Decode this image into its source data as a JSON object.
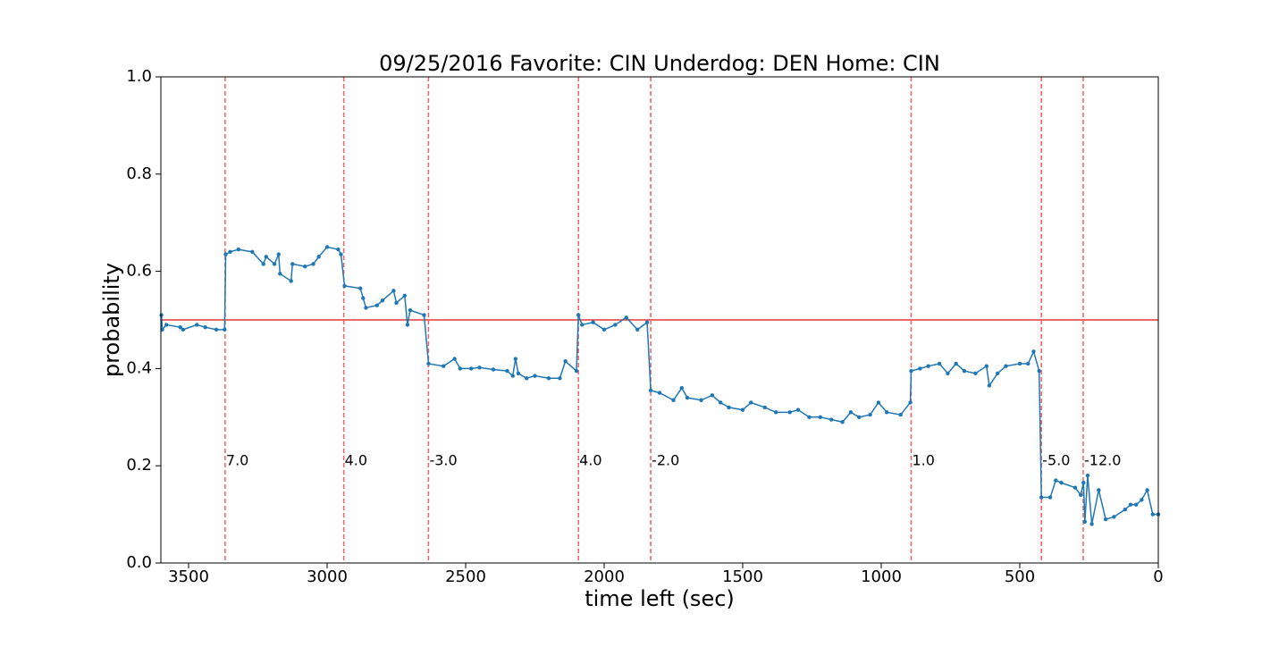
{
  "chart_data": {
    "type": "line",
    "title": "09/25/2016 Favorite: CIN Underdog: DEN Home: CIN",
    "x_label": "time left (sec)",
    "y_label": "probability",
    "xlim": [
      3600,
      0
    ],
    "ylim": [
      0,
      1
    ],
    "xticks": [
      3500,
      3000,
      2500,
      2000,
      1500,
      1000,
      500,
      0
    ],
    "yticks": [
      {
        "value": 0,
        "label": "0.0"
      },
      {
        "value": 0.2,
        "label": "0.2"
      },
      {
        "value": 0.4,
        "label": "0.4"
      },
      {
        "value": 0.6,
        "label": "0.6"
      },
      {
        "value": 0.8,
        "label": "0.8"
      },
      {
        "value": 1,
        "label": "1.0"
      }
    ],
    "grid": false,
    "reference_line": {
      "y": 0.5,
      "color": "#e0393e"
    },
    "event_lines": {
      "color": "#f06060",
      "label_y": 0.21,
      "x": [
        3368,
        2940,
        2634,
        2093,
        1832,
        892,
        422,
        271
      ],
      "labels": [
        "7.0",
        "4.0",
        "-3.0",
        "4.0",
        "-2.0",
        "1.0",
        "-5.0",
        "-12.0"
      ]
    },
    "series": [
      {
        "name": "probability",
        "color": "#1f77b4",
        "x": [
          3598,
          3595,
          3580,
          3530,
          3520,
          3470,
          3440,
          3400,
          3370,
          3366,
          3350,
          3320,
          3270,
          3230,
          3220,
          3190,
          3175,
          3170,
          3130,
          3125,
          3080,
          3050,
          3030,
          3000,
          2960,
          2950,
          2937,
          2880,
          2870,
          2860,
          2820,
          2800,
          2760,
          2750,
          2720,
          2710,
          2700,
          2650,
          2634,
          2580,
          2540,
          2520,
          2480,
          2450,
          2400,
          2350,
          2330,
          2320,
          2310,
          2280,
          2250,
          2200,
          2160,
          2140,
          2100,
          2093,
          2080,
          2040,
          2000,
          1960,
          1920,
          1880,
          1845,
          1832,
          1800,
          1750,
          1720,
          1700,
          1650,
          1610,
          1580,
          1550,
          1500,
          1470,
          1420,
          1380,
          1330,
          1300,
          1260,
          1220,
          1180,
          1140,
          1110,
          1080,
          1040,
          1010,
          980,
          930,
          895,
          892,
          860,
          830,
          790,
          760,
          730,
          700,
          660,
          620,
          610,
          580,
          550,
          500,
          470,
          450,
          430,
          422,
          390,
          370,
          350,
          300,
          280,
          270,
          265,
          255,
          240,
          215,
          190,
          160,
          120,
          100,
          80,
          60,
          40,
          20,
          0
        ],
        "values": [
          0.51,
          0.48,
          0.49,
          0.485,
          0.48,
          0.49,
          0.485,
          0.48,
          0.48,
          0.635,
          0.64,
          0.645,
          0.64,
          0.615,
          0.63,
          0.615,
          0.635,
          0.595,
          0.58,
          0.615,
          0.61,
          0.615,
          0.63,
          0.65,
          0.645,
          0.635,
          0.57,
          0.565,
          0.545,
          0.525,
          0.53,
          0.54,
          0.56,
          0.535,
          0.55,
          0.49,
          0.52,
          0.51,
          0.41,
          0.405,
          0.42,
          0.4,
          0.4,
          0.402,
          0.398,
          0.395,
          0.385,
          0.42,
          0.39,
          0.38,
          0.385,
          0.38,
          0.38,
          0.415,
          0.395,
          0.51,
          0.49,
          0.495,
          0.48,
          0.49,
          0.505,
          0.48,
          0.495,
          0.355,
          0.35,
          0.335,
          0.36,
          0.34,
          0.335,
          0.345,
          0.33,
          0.32,
          0.315,
          0.33,
          0.32,
          0.31,
          0.31,
          0.315,
          0.3,
          0.3,
          0.295,
          0.29,
          0.31,
          0.3,
          0.305,
          0.33,
          0.31,
          0.305,
          0.33,
          0.395,
          0.4,
          0.405,
          0.41,
          0.39,
          0.41,
          0.395,
          0.39,
          0.405,
          0.365,
          0.39,
          0.405,
          0.41,
          0.41,
          0.435,
          0.395,
          0.135,
          0.135,
          0.17,
          0.165,
          0.155,
          0.14,
          0.165,
          0.085,
          0.18,
          0.08,
          0.15,
          0.09,
          0.095,
          0.11,
          0.12,
          0.12,
          0.13,
          0.15,
          0.1,
          0.1
        ]
      }
    ]
  }
}
